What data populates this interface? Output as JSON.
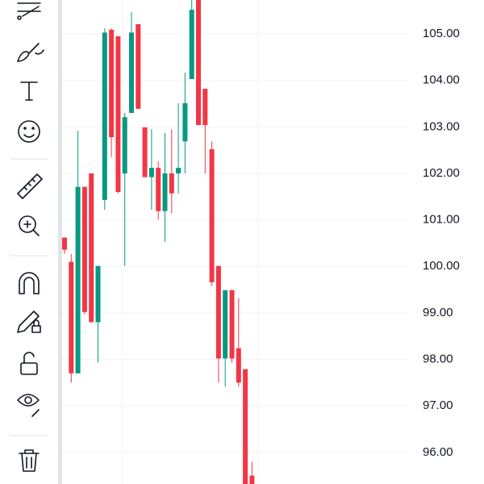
{
  "chart_data": {
    "type": "candlestick",
    "categories": [
      null,
      null,
      null,
      null,
      null,
      null,
      null,
      null,
      null,
      null,
      null,
      null,
      null,
      null,
      null,
      null,
      null,
      null,
      null,
      null,
      null,
      null,
      null,
      null,
      null,
      null,
      null,
      null,
      null
    ],
    "open": [
      100.62,
      100.1,
      97.7,
      101.71,
      102.0,
      98.8,
      101.43,
      105.09,
      104.95,
      102.0,
      103.3,
      105.21,
      102.99,
      101.92,
      102.12,
      101.19,
      102.0,
      102.0,
      102.69,
      104.03,
      105.8,
      103.82,
      102.52,
      100.01,
      98.02,
      99.49,
      98.24,
      97.79,
      95.5
    ],
    "high": [
      100.62,
      100.27,
      102.92,
      101.71,
      102.0,
      100.01,
      105.12,
      105.12,
      104.95,
      103.3,
      105.47,
      105.21,
      102.99,
      102.95,
      102.26,
      102.87,
      102.95,
      103.51,
      104.17,
      105.73,
      105.8,
      103.82,
      102.69,
      100.01,
      99.49,
      99.49,
      99.32,
      97.79,
      95.8
    ],
    "low": [
      100.27,
      97.5,
      97.7,
      98.97,
      98.8,
      97.93,
      101.22,
      102.35,
      101.57,
      100.01,
      103.3,
      103.39,
      101.92,
      101.22,
      101.01,
      100.53,
      101.14,
      101.57,
      102.0,
      104.03,
      103.04,
      102.0,
      99.58,
      97.5,
      97.41,
      97.93,
      97.41,
      95.2,
      95.2
    ],
    "close": [
      100.36,
      97.7,
      101.71,
      99.02,
      98.8,
      100.01,
      105.03,
      102.78,
      101.6,
      103.21,
      105.03,
      103.39,
      101.92,
      102.12,
      101.19,
      102.0,
      101.57,
      102.12,
      103.51,
      105.52,
      103.04,
      103.04,
      99.66,
      98.02,
      99.49,
      98.02,
      97.5,
      95.2,
      95.2
    ],
    "up_color": "#089981",
    "down_color": "#f23645",
    "ylim": [
      95.32,
      105.73
    ],
    "yticks": [
      {
        "value": 96,
        "label": "96.00"
      },
      {
        "value": 97,
        "label": "97.00"
      },
      {
        "value": 98,
        "label": "98.00"
      },
      {
        "value": 99,
        "label": "99.00"
      },
      {
        "value": 100,
        "label": "100.00"
      },
      {
        "value": 101,
        "label": "101.00"
      },
      {
        "value": 102,
        "label": "102.00"
      },
      {
        "value": 103,
        "label": "103.00"
      },
      {
        "value": 104,
        "label": "104.00"
      },
      {
        "value": 105,
        "label": "105.00"
      }
    ],
    "grid": true
  }
}
